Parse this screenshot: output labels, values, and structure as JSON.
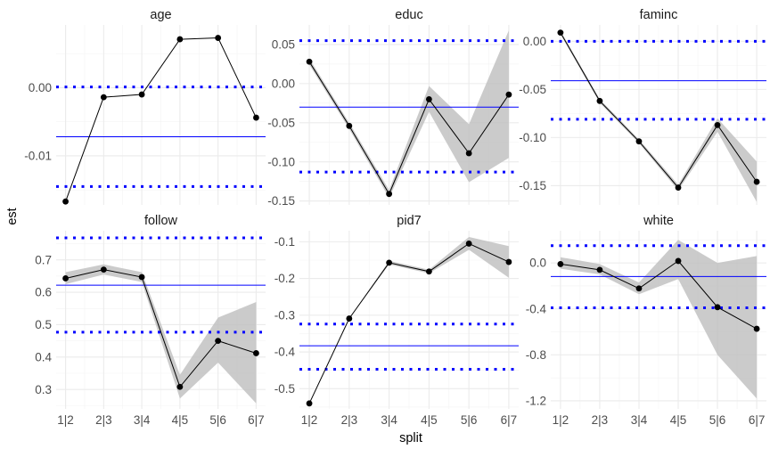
{
  "chart_data": {
    "type": "line",
    "xlabel": "split",
    "ylabel": "est",
    "categories": [
      "1|2",
      "2|3",
      "3|4",
      "4|5",
      "5|6",
      "6|7"
    ],
    "colors": {
      "line": "#000000",
      "ribbon": "#bebebe",
      "hline": "#0000ff",
      "grid": "#ebebeb"
    },
    "panels": [
      {
        "name": "age",
        "ylim": [
          -0.0172,
          0.0092
        ],
        "yticks": [
          -0.01,
          0.0
        ],
        "yticklabels": [
          "-0.01",
          "0.00"
        ],
        "values": [
          -0.0167,
          -0.0014,
          -0.001,
          0.0071,
          0.0073,
          -0.0044
        ],
        "lower": [
          -0.0167,
          -0.0014,
          -0.001,
          0.0071,
          0.0073,
          -0.0044
        ],
        "upper": [
          -0.0167,
          -0.0014,
          -0.001,
          0.0071,
          0.0073,
          -0.0044
        ],
        "mean": -0.0072,
        "bounds": [
          -0.0145,
          0.0001
        ]
      },
      {
        "name": "educ",
        "ylim": [
          -0.155,
          0.075
        ],
        "yticks": [
          -0.15,
          -0.1,
          -0.05,
          0.0,
          0.05
        ],
        "yticklabels": [
          "-0.15",
          "-0.10",
          "-0.05",
          "0.00",
          "0.05"
        ],
        "values": [
          0.028,
          -0.054,
          -0.141,
          -0.02,
          -0.089,
          -0.014
        ],
        "lower": [
          0.024,
          -0.058,
          -0.146,
          -0.036,
          -0.126,
          -0.095
        ],
        "upper": [
          0.032,
          -0.05,
          -0.136,
          -0.003,
          -0.052,
          0.068
        ],
        "mean": -0.03,
        "bounds": [
          -0.113,
          0.055
        ]
      },
      {
        "name": "faminc",
        "ylim": [
          -0.17,
          0.017
        ],
        "yticks": [
          -0.15,
          -0.1,
          -0.05,
          0.0
        ],
        "yticklabels": [
          "-0.15",
          "-0.10",
          "-0.05",
          "0.00"
        ],
        "values": [
          0.009,
          -0.062,
          -0.104,
          -0.152,
          -0.087,
          -0.146
        ],
        "lower": [
          0.007,
          -0.064,
          -0.106,
          -0.155,
          -0.094,
          -0.167
        ],
        "upper": [
          0.011,
          -0.06,
          -0.102,
          -0.149,
          -0.08,
          -0.125
        ],
        "mean": -0.041,
        "bounds": [
          -0.081,
          0.0
        ]
      },
      {
        "name": "follow",
        "ylim": [
          0.24,
          0.79
        ],
        "yticks": [
          0.3,
          0.4,
          0.5,
          0.6,
          0.7
        ],
        "yticklabels": [
          "0.3",
          "0.4",
          "0.5",
          "0.6",
          "0.7"
        ],
        "values": [
          0.643,
          0.67,
          0.647,
          0.308,
          0.45,
          0.412
        ],
        "lower": [
          0.625,
          0.655,
          0.632,
          0.272,
          0.383,
          0.257
        ],
        "upper": [
          0.662,
          0.686,
          0.662,
          0.345,
          0.522,
          0.57
        ],
        "mean": 0.622,
        "bounds": [
          0.477,
          0.768
        ]
      },
      {
        "name": "pid7",
        "ylim": [
          -0.555,
          -0.07
        ],
        "yticks": [
          -0.5,
          -0.4,
          -0.3,
          -0.2,
          -0.1
        ],
        "yticklabels": [
          "-0.5",
          "-0.4",
          "-0.3",
          "-0.2",
          "-0.1"
        ],
        "values": [
          -0.54,
          -0.309,
          -0.157,
          -0.181,
          -0.105,
          -0.155
        ],
        "lower": [
          -0.54,
          -0.309,
          -0.162,
          -0.186,
          -0.122,
          -0.198
        ],
        "upper": [
          -0.54,
          -0.309,
          -0.152,
          -0.176,
          -0.087,
          -0.112
        ],
        "mean": -0.383,
        "bounds": [
          -0.447,
          -0.324
        ]
      },
      {
        "name": "white",
        "ylim": [
          -1.27,
          0.28
        ],
        "yticks": [
          -1.2,
          -0.8,
          -0.4,
          0.0
        ],
        "yticklabels": [
          "-1.2",
          "-0.8",
          "-0.4",
          "0.0"
        ],
        "values": [
          -0.01,
          -0.06,
          -0.222,
          0.017,
          -0.385,
          -0.573
        ],
        "lower": [
          -0.05,
          -0.1,
          -0.272,
          -0.14,
          -0.8,
          -1.18
        ],
        "upper": [
          0.05,
          -0.01,
          -0.17,
          0.2,
          0.0,
          0.06
        ],
        "mean": -0.118,
        "bounds": [
          -0.39,
          0.15
        ]
      }
    ]
  }
}
